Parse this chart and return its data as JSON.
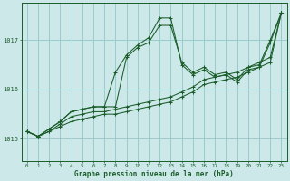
{
  "xlabel": "Graphe pression niveau de la mer (hPa)",
  "bg_color": "#cce8e8",
  "grid_color": "#99cccc",
  "line_color": "#1a5c2a",
  "xlim": [
    -0.5,
    23.5
  ],
  "ylim": [
    1014.55,
    1017.75
  ],
  "xticks": [
    0,
    1,
    2,
    3,
    4,
    5,
    6,
    7,
    8,
    9,
    10,
    11,
    12,
    13,
    14,
    15,
    16,
    17,
    18,
    19,
    20,
    21,
    22,
    23
  ],
  "yticks": [
    1015,
    1016,
    1017
  ],
  "series": [
    [
      1015.15,
      1015.05,
      1015.15,
      1015.25,
      1015.35,
      1015.4,
      1015.45,
      1015.5,
      1015.5,
      1015.55,
      1015.6,
      1015.65,
      1015.7,
      1015.75,
      1015.85,
      1015.95,
      1016.1,
      1016.15,
      1016.2,
      1016.25,
      1016.35,
      1016.45,
      1016.55,
      1017.55
    ],
    [
      1015.15,
      1015.05,
      1015.15,
      1015.3,
      1015.45,
      1015.5,
      1015.55,
      1015.55,
      1015.6,
      1015.65,
      1015.7,
      1015.75,
      1015.8,
      1015.85,
      1015.95,
      1016.05,
      1016.2,
      1016.25,
      1016.3,
      1016.35,
      1016.45,
      1016.55,
      1016.65,
      1017.55
    ],
    [
      1015.15,
      1015.05,
      1015.2,
      1015.35,
      1015.55,
      1015.6,
      1015.65,
      1015.65,
      1015.65,
      1016.65,
      1016.85,
      1016.95,
      1017.3,
      1017.3,
      1016.55,
      1016.35,
      1016.45,
      1016.3,
      1016.35,
      1016.2,
      1016.45,
      1016.5,
      1017.0,
      1017.55
    ],
    [
      1015.15,
      1015.05,
      1015.2,
      1015.35,
      1015.55,
      1015.6,
      1015.65,
      1015.65,
      1016.35,
      1016.7,
      1016.9,
      1017.05,
      1017.45,
      1017.45,
      1016.5,
      1016.3,
      1016.4,
      1016.25,
      1016.3,
      1016.15,
      1016.4,
      1016.45,
      1016.95,
      1017.55
    ]
  ]
}
